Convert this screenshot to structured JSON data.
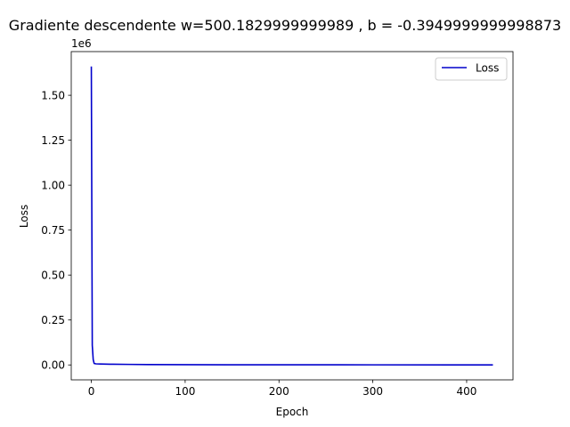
{
  "chart_data": {
    "type": "line",
    "title": "Gradiente descendente w=500.1829999999989 , b = -0.3949999999998873",
    "xlabel": "Epoch",
    "ylabel": "Loss",
    "y_offset_label": "1e6",
    "xlim": [
      -21.4,
      449.4
    ],
    "ylim": [
      -0.083,
      1.743
    ],
    "x_ticks": [
      0,
      100,
      200,
      300,
      400
    ],
    "x_tick_labels": [
      "0",
      "100",
      "200",
      "300",
      "400"
    ],
    "y_ticks": [
      0.0,
      0.25,
      0.5,
      0.75,
      1.0,
      1.25,
      1.5
    ],
    "y_tick_labels": [
      "0.00",
      "0.25",
      "0.50",
      "0.75",
      "1.00",
      "1.25",
      "1.50"
    ],
    "grid": false,
    "legend_position": "top-right",
    "series": [
      {
        "name": "Loss",
        "color": "#0000cc",
        "x": [
          0,
          1,
          2,
          3,
          5,
          10,
          20,
          40,
          60,
          100,
          150,
          200,
          300,
          428
        ],
        "y": [
          1.66,
          0.11,
          0.03,
          0.008,
          0.006,
          0.005,
          0.004,
          0.003,
          0.002,
          0.0015,
          0.001,
          0.0008,
          0.0005,
          0.0003
        ]
      }
    ]
  }
}
